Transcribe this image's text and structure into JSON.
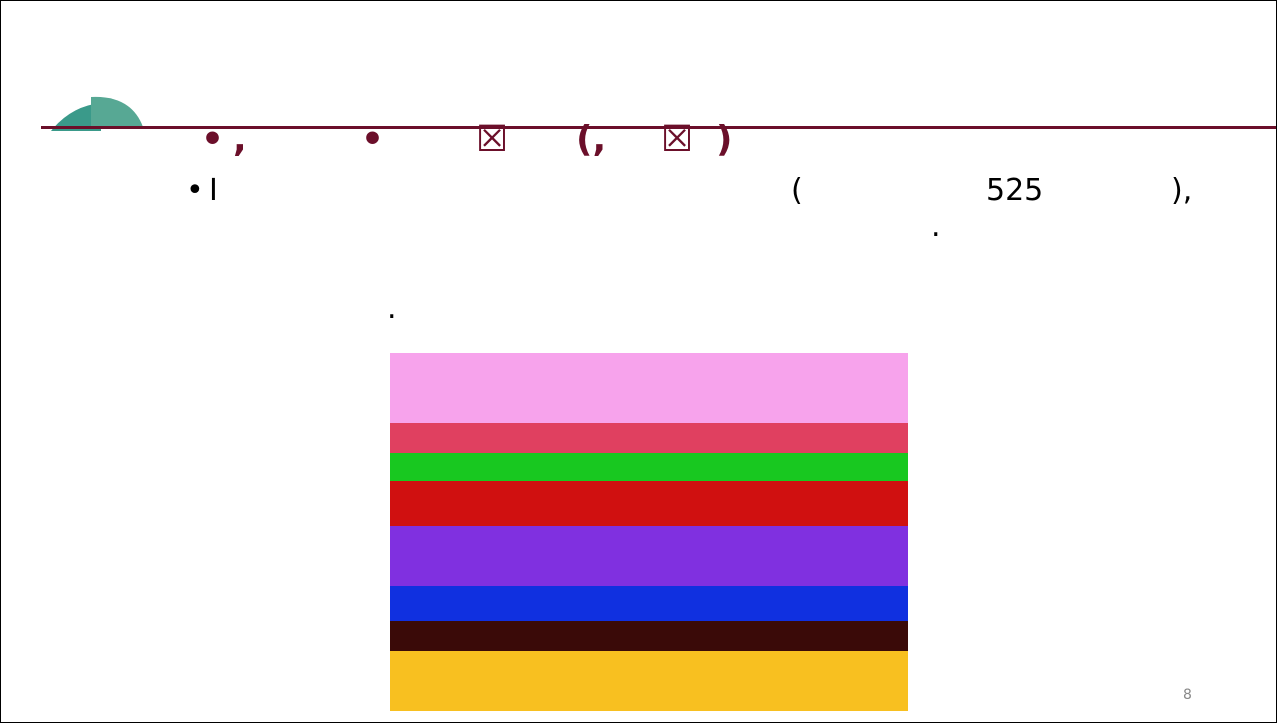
{
  "header": {
    "title_parts": [
      "•",
      ",",
      "•",
      "☒",
      "(,",
      "☒",
      ")"
    ]
  },
  "bullet": {
    "marker": "•",
    "parts": [
      "I",
      "(",
      "525",
      "),"
    ]
  },
  "dots": [
    ".",
    "."
  ],
  "page_number": "8"
}
